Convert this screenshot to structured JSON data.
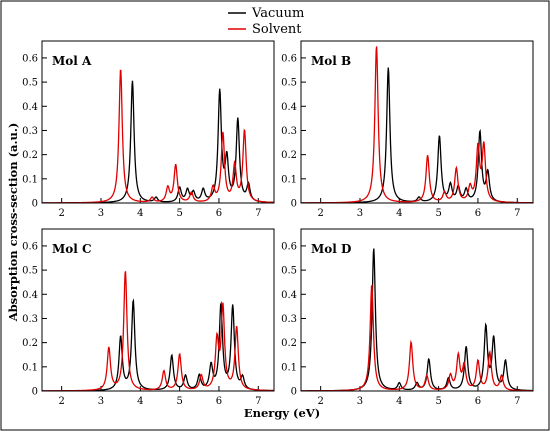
{
  "figure": {
    "ylabel": "Absorption cross-section (a.u.)",
    "xlabel": "Energy (eV)",
    "legend": [
      {
        "name": "Vacuum",
        "color": "#000000"
      },
      {
        "name": "Solvent",
        "color": "#e00000"
      }
    ]
  },
  "chart_data": [
    {
      "type": "line",
      "panel_label": "Mol A",
      "xlim": [
        1.5,
        7.4
      ],
      "ylim": [
        0,
        0.67
      ],
      "xticks": [
        2,
        3,
        4,
        5,
        6,
        7
      ],
      "yticks": [
        0,
        0.1,
        0.2,
        0.3,
        0.4,
        0.5,
        0.6
      ],
      "ytick_labels": [
        "0",
        "0.1",
        "0.2",
        "0.3",
        "0.4",
        "0.5",
        "0.6"
      ],
      "series": [
        {
          "name": "Vacuum",
          "color": "#000000",
          "peaks": [
            [
              3.8,
              0.505
            ],
            [
              4.4,
              0.02
            ],
            [
              5.0,
              0.06
            ],
            [
              5.2,
              0.05
            ],
            [
              5.35,
              0.04
            ],
            [
              5.6,
              0.05
            ],
            [
              6.02,
              0.455
            ],
            [
              6.2,
              0.17
            ],
            [
              6.48,
              0.34
            ],
            [
              6.75,
              0.07
            ]
          ]
        },
        {
          "name": "Solvent",
          "color": "#e00000",
          "peaks": [
            [
              3.5,
              0.555
            ],
            [
              4.3,
              0.02
            ],
            [
              4.7,
              0.06
            ],
            [
              4.9,
              0.155
            ],
            [
              5.3,
              0.04
            ],
            [
              5.85,
              0.06
            ],
            [
              6.1,
              0.285
            ],
            [
              6.4,
              0.15
            ],
            [
              6.65,
              0.295
            ]
          ]
        }
      ]
    },
    {
      "type": "line",
      "panel_label": "Mol B",
      "xlim": [
        1.5,
        7.4
      ],
      "ylim": [
        0,
        0.67
      ],
      "xticks": [
        2,
        3,
        4,
        5,
        6,
        7
      ],
      "yticks": [
        0,
        0.1,
        0.2,
        0.3,
        0.4,
        0.5,
        0.6
      ],
      "ytick_labels": [
        "0",
        "0.1",
        "0.2",
        "0.3",
        "0.4",
        "0.5",
        "0.6"
      ],
      "series": [
        {
          "name": "Vacuum",
          "color": "#000000",
          "peaks": [
            [
              3.72,
              0.56
            ],
            [
              4.5,
              0.02
            ],
            [
              5.02,
              0.275
            ],
            [
              5.3,
              0.07
            ],
            [
              5.5,
              0.06
            ],
            [
              5.7,
              0.05
            ],
            [
              6.05,
              0.29
            ],
            [
              6.25,
              0.12
            ]
          ]
        },
        {
          "name": "Solvent",
          "color": "#e00000",
          "peaks": [
            [
              3.42,
              0.65
            ],
            [
              4.72,
              0.195
            ],
            [
              5.15,
              0.04
            ],
            [
              5.45,
              0.14
            ],
            [
              5.8,
              0.06
            ],
            [
              6.0,
              0.22
            ],
            [
              6.15,
              0.23
            ]
          ]
        }
      ]
    },
    {
      "type": "line",
      "panel_label": "Mol C",
      "xlim": [
        1.5,
        7.4
      ],
      "ylim": [
        0,
        0.67
      ],
      "xticks": [
        2,
        3,
        4,
        5,
        6,
        7
      ],
      "yticks": [
        0,
        0.1,
        0.2,
        0.3,
        0.4,
        0.5,
        0.6
      ],
      "ytick_labels": [
        "0",
        "0.1",
        "0.2",
        "0.3",
        "0.4",
        "0.5",
        "0.6"
      ],
      "series": [
        {
          "name": "Vacuum",
          "color": "#000000",
          "peaks": [
            [
              3.5,
              0.22
            ],
            [
              3.82,
              0.37
            ],
            [
              4.8,
              0.145
            ],
            [
              5.15,
              0.06
            ],
            [
              5.5,
              0.06
            ],
            [
              5.8,
              0.1
            ],
            [
              6.05,
              0.35
            ],
            [
              6.35,
              0.345
            ],
            [
              6.6,
              0.05
            ]
          ]
        },
        {
          "name": "Solvent",
          "color": "#e00000",
          "peaks": [
            [
              3.2,
              0.175
            ],
            [
              3.62,
              0.495
            ],
            [
              4.6,
              0.08
            ],
            [
              5.0,
              0.15
            ],
            [
              5.55,
              0.06
            ],
            [
              5.95,
              0.2
            ],
            [
              6.1,
              0.34
            ],
            [
              6.45,
              0.26
            ]
          ]
        }
      ]
    },
    {
      "type": "line",
      "panel_label": "Mol D",
      "xlim": [
        1.5,
        7.4
      ],
      "ylim": [
        0,
        0.67
      ],
      "xticks": [
        2,
        3,
        4,
        5,
        6,
        7
      ],
      "yticks": [
        0,
        0.1,
        0.2,
        0.3,
        0.4,
        0.5,
        0.6
      ],
      "ytick_labels": [
        "0",
        "0.1",
        "0.2",
        "0.3",
        "0.4",
        "0.5",
        "0.6"
      ],
      "series": [
        {
          "name": "Vacuum",
          "color": "#000000",
          "peaks": [
            [
              3.35,
              0.59
            ],
            [
              4.0,
              0.03
            ],
            [
              4.45,
              0.03
            ],
            [
              4.75,
              0.13
            ],
            [
              5.25,
              0.05
            ],
            [
              5.7,
              0.18
            ],
            [
              6.2,
              0.26
            ],
            [
              6.4,
              0.21
            ],
            [
              6.7,
              0.12
            ]
          ]
        },
        {
          "name": "Solvent",
          "color": "#e00000",
          "peaks": [
            [
              3.3,
              0.44
            ],
            [
              4.3,
              0.2
            ],
            [
              4.7,
              0.06
            ],
            [
              5.3,
              0.06
            ],
            [
              5.5,
              0.14
            ],
            [
              5.65,
              0.1
            ],
            [
              6.0,
              0.12
            ],
            [
              6.3,
              0.155
            ],
            [
              6.6,
              0.06
            ]
          ]
        }
      ]
    }
  ]
}
